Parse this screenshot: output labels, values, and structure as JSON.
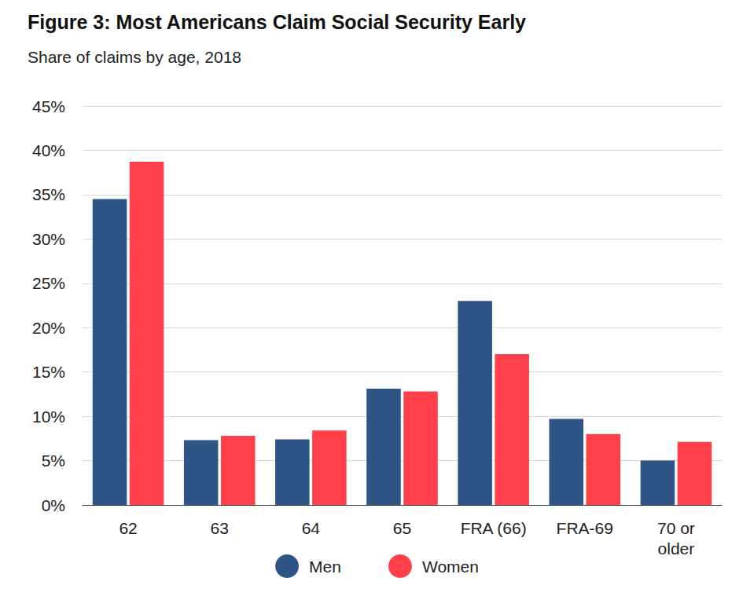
{
  "chart_data": {
    "type": "bar",
    "title": "Figure 3: Most Americans Claim Social Security Early",
    "subtitle": "Share of claims by age, 2018",
    "categories": [
      "62",
      "63",
      "64",
      "65",
      "FRA (66)",
      "FRA-69",
      "70 or\nolder"
    ],
    "series": [
      {
        "name": "Men",
        "color": "#2e5585",
        "values": [
          34.5,
          7.3,
          7.4,
          13.1,
          23.0,
          9.7,
          5.0
        ]
      },
      {
        "name": "Women",
        "color": "#ff404b",
        "values": [
          38.7,
          7.8,
          8.4,
          12.8,
          17.0,
          8.0,
          7.1
        ]
      }
    ],
    "ylim": [
      0,
      45
    ],
    "yticks": [
      {
        "value": 0,
        "label": "0%"
      },
      {
        "value": 5,
        "label": "5%"
      },
      {
        "value": 10,
        "label": "10%"
      },
      {
        "value": 15,
        "label": "15%"
      },
      {
        "value": 20,
        "label": "20%"
      },
      {
        "value": 25,
        "label": "25%"
      },
      {
        "value": 30,
        "label": "30%"
      },
      {
        "value": 35,
        "label": "35%"
      },
      {
        "value": 40,
        "label": "40%"
      },
      {
        "value": 45,
        "label": "45%"
      }
    ],
    "grid": true,
    "legend": "bottom"
  }
}
